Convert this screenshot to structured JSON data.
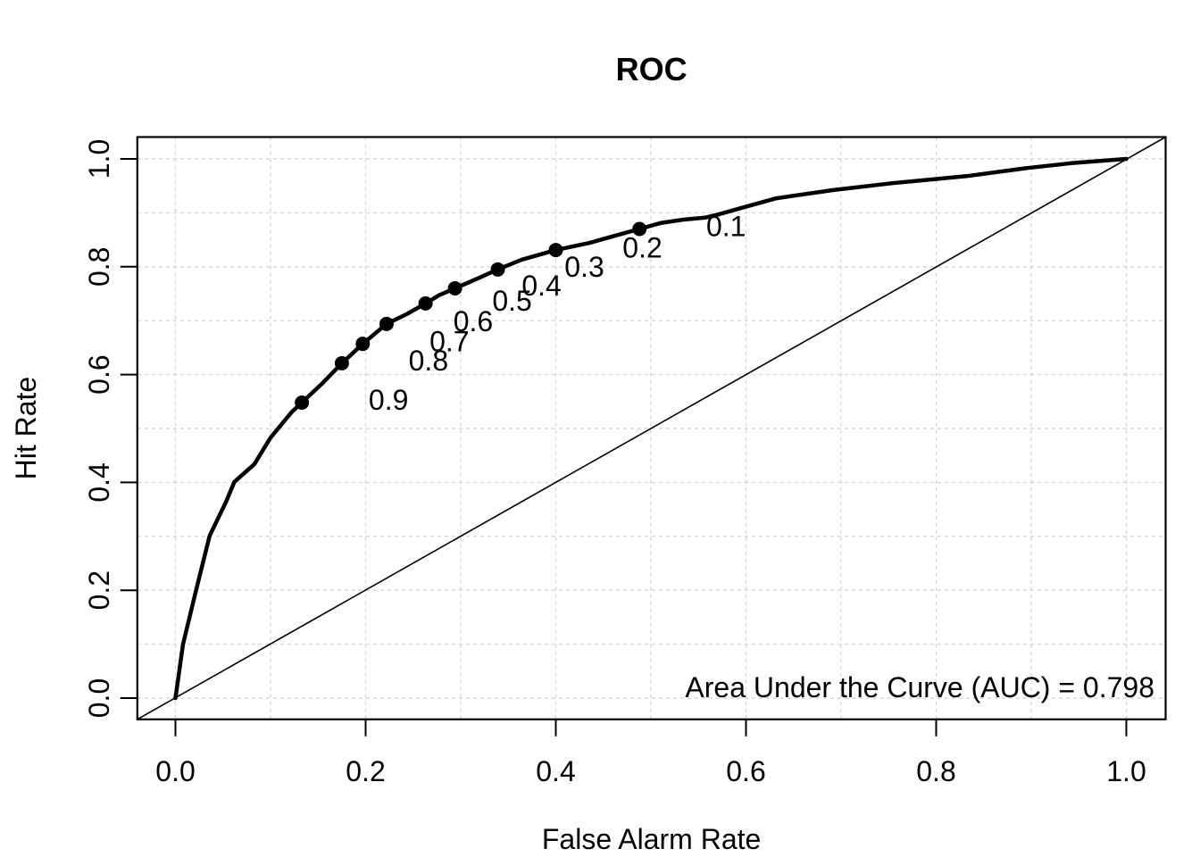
{
  "chart_data": {
    "type": "line",
    "title": "ROC",
    "xlabel": "False Alarm Rate",
    "ylabel": "Hit Rate",
    "xlim": [
      -0.04,
      1.04
    ],
    "ylim": [
      -0.04,
      1.04
    ],
    "x_ticks": [
      "0.0",
      "0.2",
      "0.4",
      "0.6",
      "0.8",
      "1.0"
    ],
    "y_ticks": [
      "0.0",
      "0.2",
      "0.4",
      "0.6",
      "0.8",
      "1.0"
    ],
    "grid": {
      "on": true,
      "step": 0.1,
      "style": "dashed",
      "color": "#d6d6d6"
    },
    "auc_label": "Area Under the Curve (AUC) = 0.798",
    "auc_value": 0.798,
    "diagonal": {
      "from": [
        0,
        0
      ],
      "to": [
        1,
        1
      ],
      "meaning": "chance line"
    },
    "roc_curve": [
      [
        0.0,
        0.0
      ],
      [
        0.008,
        0.1
      ],
      [
        0.022,
        0.202
      ],
      [
        0.036,
        0.301
      ],
      [
        0.053,
        0.363
      ],
      [
        0.062,
        0.401
      ],
      [
        0.083,
        0.434
      ],
      [
        0.1,
        0.483
      ],
      [
        0.122,
        0.53
      ],
      [
        0.133,
        0.548
      ],
      [
        0.154,
        0.583
      ],
      [
        0.175,
        0.621
      ],
      [
        0.197,
        0.657
      ],
      [
        0.222,
        0.694
      ],
      [
        0.243,
        0.712
      ],
      [
        0.263,
        0.732
      ],
      [
        0.277,
        0.747
      ],
      [
        0.294,
        0.76
      ],
      [
        0.32,
        0.78
      ],
      [
        0.339,
        0.795
      ],
      [
        0.364,
        0.813
      ],
      [
        0.4,
        0.831
      ],
      [
        0.435,
        0.844
      ],
      [
        0.463,
        0.858
      ],
      [
        0.488,
        0.87
      ],
      [
        0.51,
        0.881
      ],
      [
        0.532,
        0.887
      ],
      [
        0.557,
        0.891
      ],
      [
        0.571,
        0.897
      ],
      [
        0.599,
        0.911
      ],
      [
        0.632,
        0.927
      ],
      [
        0.691,
        0.942
      ],
      [
        0.754,
        0.955
      ],
      [
        0.832,
        0.968
      ],
      [
        0.895,
        0.983
      ],
      [
        0.942,
        0.992
      ],
      [
        1.0,
        1.0
      ]
    ],
    "criterion_points": [
      {
        "label": "0.1",
        "fa": 0.488,
        "hit": 0.87
      },
      {
        "label": "0.2",
        "fa": 0.4,
        "hit": 0.831
      },
      {
        "label": "0.3",
        "fa": 0.339,
        "hit": 0.795
      },
      {
        "label": "0.4",
        "fa": 0.294,
        "hit": 0.76
      },
      {
        "label": "0.5",
        "fa": 0.263,
        "hit": 0.732
      },
      {
        "label": "0.6",
        "fa": 0.222,
        "hit": 0.694
      },
      {
        "label": "0.7",
        "fa": 0.197,
        "hit": 0.657
      },
      {
        "label": "0.8",
        "fa": 0.175,
        "hit": 0.621
      },
      {
        "label": "0.9",
        "fa": 0.133,
        "hit": 0.548
      }
    ],
    "colors": {
      "curve": "#000000",
      "diagonal": "#000000",
      "points": "#000000",
      "grid": "#d6d6d6",
      "background": "#ffffff",
      "text": "#000000"
    },
    "legend": {
      "shown": false
    }
  }
}
